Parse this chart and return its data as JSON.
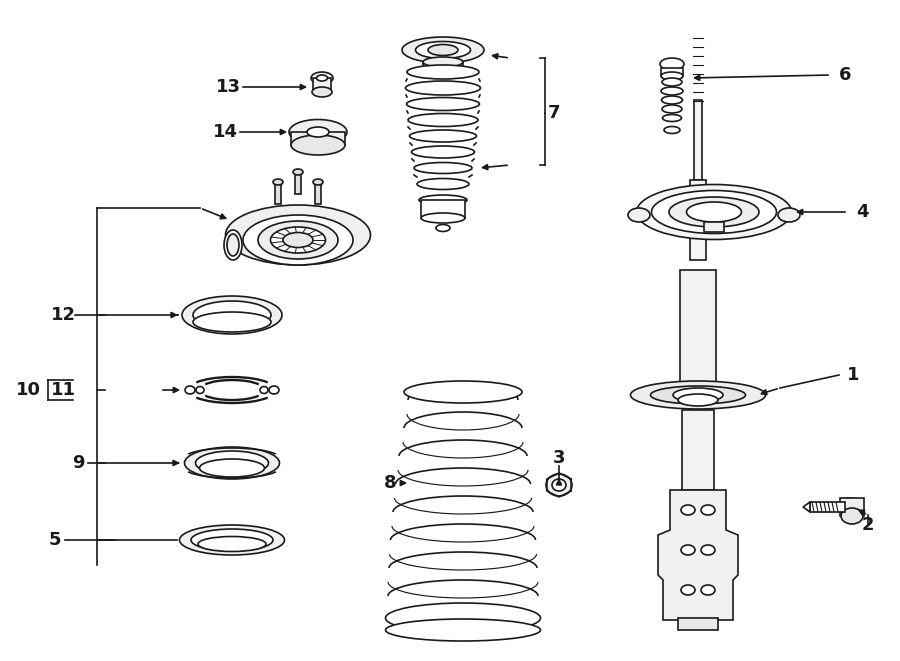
{
  "bg_color": "#ffffff",
  "line_color": "#1a1a1a",
  "fig_width": 9.0,
  "fig_height": 6.61,
  "lw": 1.2
}
